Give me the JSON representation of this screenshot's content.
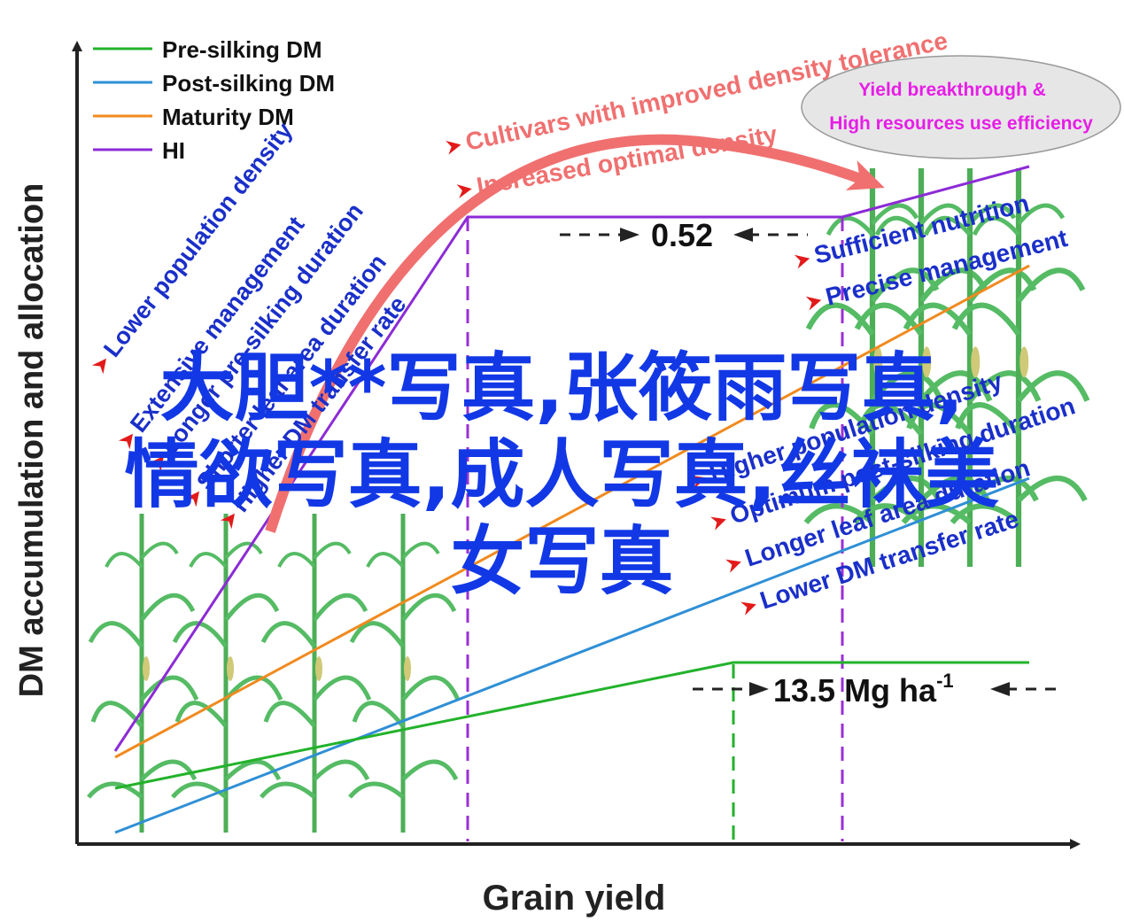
{
  "axes": {
    "ylabel": "DM accumulation and allocation",
    "xlabel": "Grain yield"
  },
  "legend": [
    {
      "label": "Pre-silking DM",
      "color": "#22b22a"
    },
    {
      "label": "Post-silking DM",
      "color": "#2f8fd6"
    },
    {
      "label": "Maturity DM",
      "color": "#f08a1f"
    },
    {
      "label": "HI",
      "color": "#8c2bd6"
    }
  ],
  "curved_arrow": {
    "lines": [
      "Cultivars with improved density tolerance",
      "Increased optimal density"
    ],
    "color": "#f07070"
  },
  "ellipse": {
    "lines": [
      "Yield breakthrough &",
      "High resources use efficiency"
    ],
    "color": "#e61ee6"
  },
  "annotations": {
    "hi_gap": "0.52",
    "yield_gap": "13.5 Mg ha",
    "yield_gap_sup": "-1"
  },
  "left_factors": [
    "Lower population density",
    "Extensive management",
    "Longer pre-silking duration",
    "Shorter leaf area duration",
    "Higher DM transfer rate"
  ],
  "right_factors_top": [
    "Sufficient nutrition",
    "Precise management"
  ],
  "right_factors_bottom": [
    "Higher population density",
    "Optimum post-silking duration",
    "Longer leaf area duration",
    "Lower DM transfer rate"
  ],
  "overlay_text": {
    "line1": "大胆**写真,张筱雨写真,",
    "line2": "情欲写真,成人写真,丝袜美",
    "line3": "女写真"
  },
  "colors": {
    "factor_text": "#1a2fc9",
    "bullet": "#e21a1a",
    "axis": "#222222",
    "corn_leaf": "#2fa03a"
  }
}
